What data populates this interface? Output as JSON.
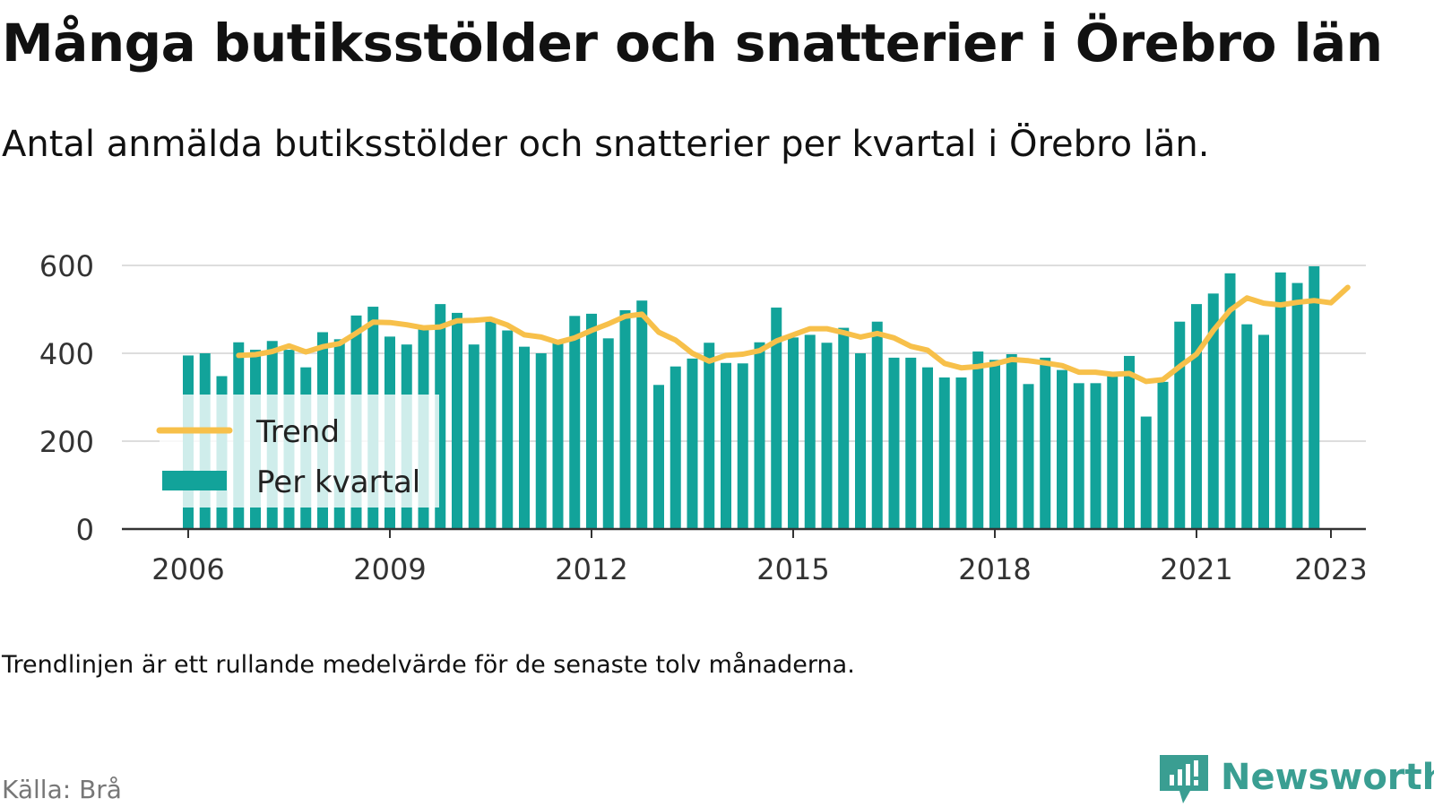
{
  "header": {
    "title": "Många butiksstölder och snatterier i Örebro län",
    "subtitle": "Antal anmälda butiksstölder och snatterier per kvartal i Örebro län."
  },
  "footer": {
    "note": "Trendlinjen är ett rullande medelvärde för de senaste tolv månaderna.",
    "source": "Källa: Brå",
    "brand": "Newsworthy"
  },
  "colors": {
    "bars": "#12a39a",
    "trend": "#f7c04a",
    "grid": "#dddddd",
    "axis": "#333333",
    "brand": "#3a9e92"
  },
  "chart_data": {
    "type": "bar",
    "x_unit": "quarter",
    "xlim": [
      "2006-Q1",
      "2023-Q1"
    ],
    "ylim": [
      0,
      600
    ],
    "yticks": [
      0,
      200,
      400,
      600
    ],
    "xticks": [
      "2006",
      "2009",
      "2012",
      "2015",
      "2018",
      "2021",
      "2023"
    ],
    "grid": true,
    "legend": {
      "placement": "left",
      "entries": [
        "Trend",
        "Per kvartal"
      ]
    },
    "series": [
      {
        "name": "Per kvartal",
        "type": "bar",
        "x_start": "2006-Q1",
        "values": [
          395,
          400,
          348,
          425,
          408,
          428,
          408,
          368,
          448,
          432,
          486,
          506,
          438,
          420,
          456,
          512,
          492,
          420,
          476,
          452,
          415,
          400,
          430,
          485,
          490,
          434,
          498,
          520,
          328,
          370,
          388,
          424,
          378,
          377,
          425,
          504,
          436,
          442,
          424,
          458,
          400,
          472,
          390,
          390,
          368,
          345,
          345,
          404,
          385,
          398,
          330,
          390,
          362,
          332,
          332,
          355,
          394,
          256,
          335,
          472,
          512,
          536,
          582,
          466,
          442,
          584,
          560,
          598
        ]
      },
      {
        "name": "Trend",
        "type": "line",
        "x_start": "2006-Q4",
        "values": [
          395,
          397,
          404,
          417,
          403,
          415,
          422,
          446,
          471,
          470,
          465,
          458,
          460,
          474,
          475,
          478,
          464,
          442,
          437,
          425,
          435,
          452,
          467,
          484,
          489,
          448,
          430,
          400,
          382,
          395,
          398,
          406,
          428,
          442,
          456,
          456,
          447,
          437,
          445,
          435,
          416,
          407,
          377,
          367,
          370,
          376,
          386,
          383,
          378,
          372,
          357,
          357,
          352,
          354,
          336,
          340,
          370,
          398,
          452,
          498,
          526,
          514,
          510,
          516,
          520,
          515,
          550
        ]
      }
    ]
  }
}
